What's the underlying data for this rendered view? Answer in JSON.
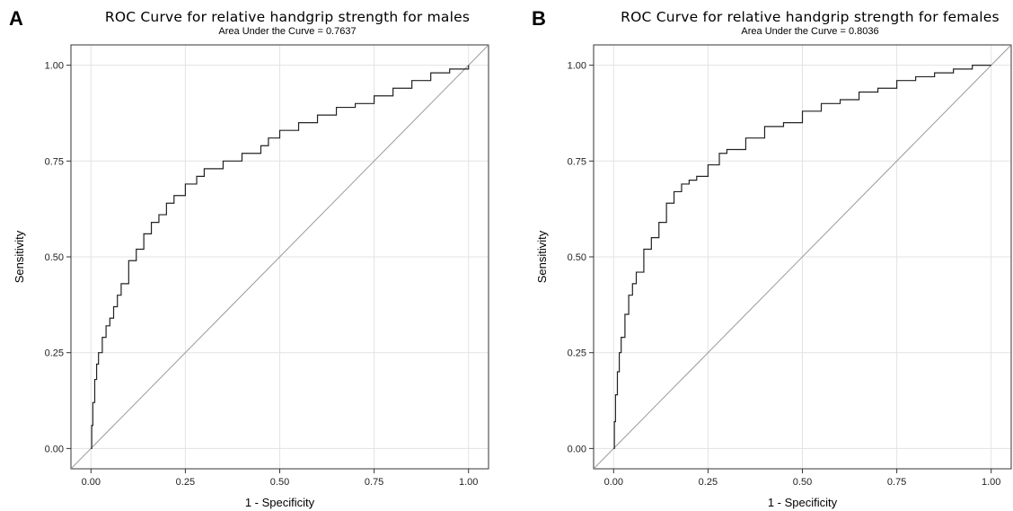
{
  "chart_data": [
    {
      "type": "line",
      "panel": "A",
      "title": "ROC Curve for relative handgrip strength for males",
      "subtitle": "Area Under the Curve = 0.7637",
      "xlabel": "1 - Specificity",
      "ylabel": "Sensitivity",
      "xlim": [
        0,
        1
      ],
      "ylim": [
        0,
        1
      ],
      "xticks": [
        "0.00",
        "0.25",
        "0.50",
        "0.75",
        "1.00"
      ],
      "yticks": [
        "0.00",
        "0.25",
        "0.50",
        "0.75",
        "1.00"
      ],
      "grid": true,
      "curve_color": "#222222",
      "reference_color": "#9a9a9a",
      "reference_line": [
        [
          0,
          0
        ],
        [
          1,
          1
        ]
      ],
      "x": [
        0,
        0.002,
        0.005,
        0.01,
        0.015,
        0.02,
        0.03,
        0.04,
        0.05,
        0.06,
        0.07,
        0.08,
        0.1,
        0.12,
        0.14,
        0.16,
        0.18,
        0.2,
        0.22,
        0.25,
        0.28,
        0.3,
        0.35,
        0.4,
        0.45,
        0.47,
        0.5,
        0.55,
        0.6,
        0.65,
        0.7,
        0.75,
        0.8,
        0.85,
        0.9,
        0.95,
        1.0
      ],
      "y": [
        0,
        0.06,
        0.12,
        0.18,
        0.22,
        0.25,
        0.29,
        0.32,
        0.34,
        0.37,
        0.4,
        0.43,
        0.49,
        0.52,
        0.56,
        0.59,
        0.61,
        0.64,
        0.66,
        0.69,
        0.71,
        0.73,
        0.75,
        0.77,
        0.79,
        0.81,
        0.83,
        0.85,
        0.87,
        0.89,
        0.9,
        0.92,
        0.94,
        0.96,
        0.98,
        0.99,
        1.0
      ]
    },
    {
      "type": "line",
      "panel": "B",
      "title": "ROC Curve for relative handgrip strength for females",
      "subtitle": "Area Under the Curve = 0.8036",
      "xlabel": "1 - Specificity",
      "ylabel": "Sensitivity",
      "xlim": [
        0,
        1
      ],
      "ylim": [
        0,
        1
      ],
      "xticks": [
        "0.00",
        "0.25",
        "0.50",
        "0.75",
        "1.00"
      ],
      "yticks": [
        "0.00",
        "0.25",
        "0.50",
        "0.75",
        "1.00"
      ],
      "grid": true,
      "curve_color": "#222222",
      "reference_color": "#9a9a9a",
      "reference_line": [
        [
          0,
          0
        ],
        [
          1,
          1
        ]
      ],
      "x": [
        0,
        0.002,
        0.005,
        0.01,
        0.015,
        0.02,
        0.03,
        0.04,
        0.05,
        0.06,
        0.08,
        0.1,
        0.12,
        0.14,
        0.16,
        0.18,
        0.2,
        0.22,
        0.25,
        0.28,
        0.3,
        0.35,
        0.4,
        0.45,
        0.5,
        0.55,
        0.6,
        0.65,
        0.7,
        0.75,
        0.8,
        0.85,
        0.9,
        0.95,
        1.0
      ],
      "y": [
        0,
        0.07,
        0.14,
        0.2,
        0.25,
        0.29,
        0.35,
        0.4,
        0.43,
        0.46,
        0.52,
        0.55,
        0.59,
        0.64,
        0.67,
        0.69,
        0.7,
        0.71,
        0.74,
        0.77,
        0.78,
        0.81,
        0.84,
        0.85,
        0.88,
        0.9,
        0.91,
        0.93,
        0.94,
        0.96,
        0.97,
        0.98,
        0.99,
        1.0,
        1.0
      ]
    }
  ]
}
